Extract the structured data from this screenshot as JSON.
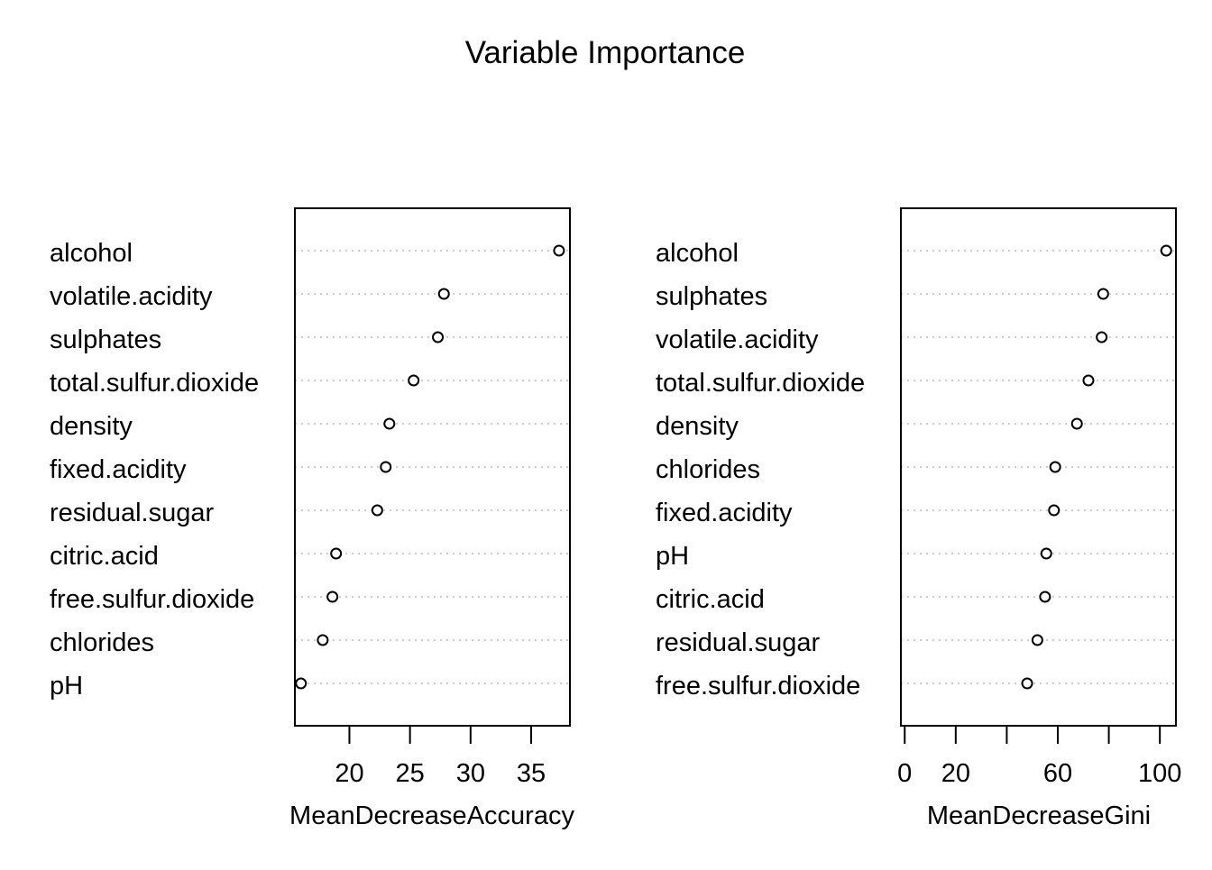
{
  "title": "Variable Importance",
  "chart_data": [
    {
      "type": "scatter",
      "xlabel": "MeanDecreaseAccuracy",
      "xlim": [
        15.5,
        38.2
      ],
      "xticks": [
        20,
        25,
        30,
        35
      ],
      "xtick_labels": [
        "20",
        "25",
        "30",
        "35"
      ],
      "grid": "dotted horizontal",
      "categories": [
        "alcohol",
        "volatile.acidity",
        "sulphates",
        "total.sulfur.dioxide",
        "density",
        "fixed.acidity",
        "residual.sugar",
        "citric.acid",
        "free.sulfur.dioxide",
        "chlorides",
        "pH"
      ],
      "values": [
        37.3,
        27.8,
        27.3,
        25.3,
        23.3,
        23.0,
        22.3,
        18.9,
        18.6,
        17.8,
        16.0
      ]
    },
    {
      "type": "scatter",
      "xlabel": "MeanDecreaseGini",
      "xlim": [
        -1.5,
        106.3
      ],
      "xticks": [
        0,
        20,
        40,
        60,
        80,
        100
      ],
      "xtick_labels": [
        "0",
        "20",
        "",
        "60",
        "",
        "100"
      ],
      "grid": "dotted horizontal",
      "categories": [
        "alcohol",
        "sulphates",
        "volatile.acidity",
        "total.sulfur.dioxide",
        "density",
        "chlorides",
        "fixed.acidity",
        "pH",
        "citric.acid",
        "residual.sugar",
        "free.sulfur.dioxide"
      ],
      "values": [
        102.5,
        77.8,
        77.2,
        72.0,
        67.5,
        59.0,
        58.5,
        55.5,
        55.0,
        52.0,
        48.0
      ]
    }
  ]
}
